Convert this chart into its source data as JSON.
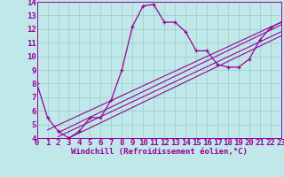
{
  "xlabel": "Windchill (Refroidissement éolien,°C)",
  "bg_color": "#c0e8e8",
  "line_color": "#990099",
  "grid_color": "#99cccc",
  "xlim": [
    0,
    23
  ],
  "ylim": [
    4,
    14
  ],
  "xticks": [
    0,
    1,
    2,
    3,
    4,
    5,
    6,
    7,
    8,
    9,
    10,
    11,
    12,
    13,
    14,
    15,
    16,
    17,
    18,
    19,
    20,
    21,
    22,
    23
  ],
  "yticks": [
    4,
    5,
    6,
    7,
    8,
    9,
    10,
    11,
    12,
    13,
    14
  ],
  "curve1_x": [
    0,
    1,
    2,
    3,
    4,
    5,
    6,
    7,
    8,
    9,
    10,
    11,
    12,
    13,
    14,
    15,
    16,
    17,
    18,
    19,
    20,
    21,
    22,
    23
  ],
  "curve1_y": [
    8.0,
    5.5,
    4.5,
    4.0,
    4.5,
    5.5,
    5.5,
    6.8,
    9.0,
    12.2,
    13.7,
    13.8,
    12.5,
    12.5,
    11.8,
    10.4,
    10.4,
    9.4,
    9.2,
    9.2,
    9.8,
    11.2,
    12.1,
    12.5
  ],
  "line1_x": [
    1,
    23
  ],
  "line1_y": [
    4.6,
    12.5
  ],
  "line2_x": [
    2,
    23
  ],
  "line2_y": [
    4.4,
    12.3
  ],
  "line3_x": [
    2,
    23
  ],
  "line3_y": [
    4.1,
    11.8
  ],
  "line4_x": [
    3,
    23
  ],
  "line4_y": [
    4.0,
    11.5
  ],
  "tick_fontsize": 6.5,
  "xlabel_fontsize": 6.5
}
